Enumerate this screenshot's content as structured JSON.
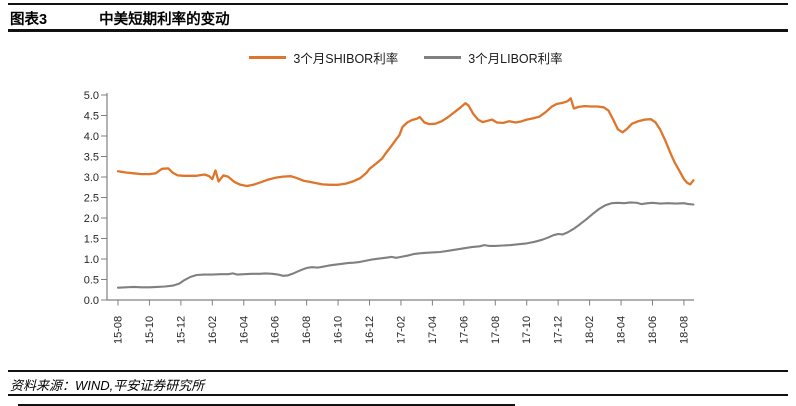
{
  "header": {
    "figure_label": "图表3",
    "title": "中美短期利率的变动"
  },
  "legend": {
    "items": [
      {
        "label": "3个月SHIBOR利率",
        "color": "#DE752B"
      },
      {
        "label": "3个月LIBOR利率",
        "color": "#808080"
      }
    ]
  },
  "footer": {
    "source": "资料来源：WIND,平安证券研究所"
  },
  "chart_data": {
    "type": "line",
    "title": "中美短期利率的变动",
    "x_unit": "months since 2015-08",
    "x_tick_labels": [
      "15-08",
      "15-10",
      "15-12",
      "16-02",
      "16-04",
      "16-06",
      "16-08",
      "16-10",
      "16-12",
      "17-02",
      "17-04",
      "17-06",
      "17-08",
      "17-10",
      "17-12",
      "18-02",
      "18-04",
      "18-06",
      "18-08"
    ],
    "x_tick_positions": [
      0,
      2,
      4,
      6,
      8,
      10,
      12,
      14,
      16,
      18,
      20,
      22,
      24,
      26,
      28,
      30,
      32,
      34,
      36
    ],
    "xlim": [
      -0.7,
      36.9
    ],
    "ylim": [
      0,
      5
    ],
    "y_tick_labels": [
      "0.0",
      "0.5",
      "1.0",
      "1.5",
      "2.0",
      "2.5",
      "3.0",
      "3.5",
      "4.0",
      "4.5",
      "5.0"
    ],
    "grid": false,
    "legend_position": "top-center",
    "axis_color": "#808080",
    "tick_label_color": "#262626",
    "series": [
      {
        "name": "3个月SHIBOR利率",
        "color": "#DE752B",
        "points": [
          [
            0,
            3.14
          ],
          [
            0.5,
            3.11
          ],
          [
            1,
            3.09
          ],
          [
            1.5,
            3.07
          ],
          [
            2,
            3.07
          ],
          [
            2.4,
            3.09
          ],
          [
            2.8,
            3.2
          ],
          [
            3.2,
            3.21
          ],
          [
            3.5,
            3.1
          ],
          [
            3.8,
            3.04
          ],
          [
            4.2,
            3.03
          ],
          [
            5,
            3.03
          ],
          [
            5.5,
            3.06
          ],
          [
            5.8,
            3.02
          ],
          [
            6.0,
            2.95
          ],
          [
            6.2,
            3.16
          ],
          [
            6.4,
            2.89
          ],
          [
            6.7,
            3.04
          ],
          [
            7,
            3.01
          ],
          [
            7.4,
            2.88
          ],
          [
            7.8,
            2.81
          ],
          [
            8.2,
            2.78
          ],
          [
            8.6,
            2.81
          ],
          [
            9,
            2.86
          ],
          [
            9.5,
            2.93
          ],
          [
            10,
            2.98
          ],
          [
            10.5,
            3.01
          ],
          [
            11,
            3.02
          ],
          [
            11.4,
            2.97
          ],
          [
            11.8,
            2.91
          ],
          [
            12.2,
            2.88
          ],
          [
            12.6,
            2.85
          ],
          [
            13,
            2.82
          ],
          [
            13.5,
            2.81
          ],
          [
            14,
            2.81
          ],
          [
            14.5,
            2.84
          ],
          [
            15,
            2.9
          ],
          [
            15.4,
            2.97
          ],
          [
            15.8,
            3.1
          ],
          [
            16,
            3.2
          ],
          [
            16.4,
            3.32
          ],
          [
            16.8,
            3.45
          ],
          [
            17,
            3.56
          ],
          [
            17.4,
            3.76
          ],
          [
            17.7,
            3.92
          ],
          [
            17.9,
            4.02
          ],
          [
            18.1,
            4.22
          ],
          [
            18.4,
            4.33
          ],
          [
            18.7,
            4.39
          ],
          [
            19,
            4.42
          ],
          [
            19.2,
            4.46
          ],
          [
            19.5,
            4.33
          ],
          [
            19.8,
            4.29
          ],
          [
            20.2,
            4.3
          ],
          [
            20.6,
            4.36
          ],
          [
            21,
            4.46
          ],
          [
            21.4,
            4.58
          ],
          [
            21.8,
            4.7
          ],
          [
            22.1,
            4.8
          ],
          [
            22.3,
            4.74
          ],
          [
            22.6,
            4.54
          ],
          [
            22.9,
            4.4
          ],
          [
            23.2,
            4.34
          ],
          [
            23.5,
            4.37
          ],
          [
            23.8,
            4.4
          ],
          [
            24.1,
            4.33
          ],
          [
            24.5,
            4.32
          ],
          [
            24.9,
            4.36
          ],
          [
            25.3,
            4.33
          ],
          [
            25.7,
            4.36
          ],
          [
            26,
            4.4
          ],
          [
            26.4,
            4.43
          ],
          [
            26.8,
            4.47
          ],
          [
            27.2,
            4.58
          ],
          [
            27.6,
            4.72
          ],
          [
            27.9,
            4.78
          ],
          [
            28.3,
            4.81
          ],
          [
            28.6,
            4.85
          ],
          [
            28.8,
            4.92
          ],
          [
            29,
            4.67
          ],
          [
            29.3,
            4.71
          ],
          [
            29.7,
            4.73
          ],
          [
            30.1,
            4.72
          ],
          [
            30.5,
            4.72
          ],
          [
            30.9,
            4.7
          ],
          [
            31.2,
            4.62
          ],
          [
            31.5,
            4.4
          ],
          [
            31.8,
            4.16
          ],
          [
            32.1,
            4.09
          ],
          [
            32.4,
            4.18
          ],
          [
            32.7,
            4.3
          ],
          [
            33.1,
            4.36
          ],
          [
            33.5,
            4.4
          ],
          [
            33.9,
            4.41
          ],
          [
            34.2,
            4.33
          ],
          [
            34.5,
            4.15
          ],
          [
            34.8,
            3.9
          ],
          [
            35.1,
            3.62
          ],
          [
            35.4,
            3.36
          ],
          [
            35.7,
            3.16
          ],
          [
            36,
            2.95
          ],
          [
            36.2,
            2.86
          ],
          [
            36.4,
            2.82
          ],
          [
            36.6,
            2.92
          ]
        ]
      },
      {
        "name": "3个月LIBOR利率",
        "color": "#808080",
        "points": [
          [
            0,
            0.3
          ],
          [
            0.5,
            0.31
          ],
          [
            1,
            0.32
          ],
          [
            1.5,
            0.31
          ],
          [
            2,
            0.31
          ],
          [
            2.5,
            0.32
          ],
          [
            3,
            0.33
          ],
          [
            3.5,
            0.35
          ],
          [
            3.9,
            0.4
          ],
          [
            4.2,
            0.48
          ],
          [
            4.6,
            0.56
          ],
          [
            5,
            0.61
          ],
          [
            5.5,
            0.62
          ],
          [
            6,
            0.62
          ],
          [
            6.5,
            0.63
          ],
          [
            7,
            0.63
          ],
          [
            7.3,
            0.65
          ],
          [
            7.6,
            0.62
          ],
          [
            8,
            0.63
          ],
          [
            8.5,
            0.64
          ],
          [
            9,
            0.64
          ],
          [
            9.4,
            0.65
          ],
          [
            9.8,
            0.64
          ],
          [
            10.2,
            0.62
          ],
          [
            10.5,
            0.59
          ],
          [
            10.8,
            0.6
          ],
          [
            11.1,
            0.64
          ],
          [
            11.4,
            0.69
          ],
          [
            11.7,
            0.74
          ],
          [
            12,
            0.78
          ],
          [
            12.3,
            0.8
          ],
          [
            12.7,
            0.79
          ],
          [
            13,
            0.81
          ],
          [
            13.4,
            0.84
          ],
          [
            13.8,
            0.86
          ],
          [
            14.2,
            0.88
          ],
          [
            14.6,
            0.9
          ],
          [
            15,
            0.91
          ],
          [
            15.4,
            0.93
          ],
          [
            15.8,
            0.96
          ],
          [
            16.2,
            0.99
          ],
          [
            16.6,
            1.01
          ],
          [
            17,
            1.03
          ],
          [
            17.4,
            1.05
          ],
          [
            17.7,
            1.03
          ],
          [
            18,
            1.05
          ],
          [
            18.4,
            1.08
          ],
          [
            18.8,
            1.12
          ],
          [
            19.2,
            1.14
          ],
          [
            19.6,
            1.15
          ],
          [
            20,
            1.16
          ],
          [
            20.5,
            1.17
          ],
          [
            21,
            1.2
          ],
          [
            21.5,
            1.23
          ],
          [
            22,
            1.26
          ],
          [
            22.5,
            1.29
          ],
          [
            23,
            1.31
          ],
          [
            23.3,
            1.34
          ],
          [
            23.6,
            1.32
          ],
          [
            24,
            1.32
          ],
          [
            24.5,
            1.33
          ],
          [
            25,
            1.34
          ],
          [
            25.5,
            1.36
          ],
          [
            26,
            1.38
          ],
          [
            26.5,
            1.42
          ],
          [
            27,
            1.47
          ],
          [
            27.4,
            1.53
          ],
          [
            27.7,
            1.58
          ],
          [
            28,
            1.61
          ],
          [
            28.3,
            1.6
          ],
          [
            28.6,
            1.65
          ],
          [
            29,
            1.74
          ],
          [
            29.4,
            1.85
          ],
          [
            29.8,
            1.97
          ],
          [
            30.2,
            2.1
          ],
          [
            30.6,
            2.22
          ],
          [
            31,
            2.31
          ],
          [
            31.4,
            2.36
          ],
          [
            31.8,
            2.37
          ],
          [
            32.2,
            2.36
          ],
          [
            32.6,
            2.38
          ],
          [
            33,
            2.37
          ],
          [
            33.3,
            2.34
          ],
          [
            33.7,
            2.36
          ],
          [
            34,
            2.37
          ],
          [
            34.5,
            2.35
          ],
          [
            35,
            2.36
          ],
          [
            35.5,
            2.35
          ],
          [
            36,
            2.36
          ],
          [
            36.3,
            2.34
          ],
          [
            36.6,
            2.33
          ]
        ]
      }
    ]
  }
}
